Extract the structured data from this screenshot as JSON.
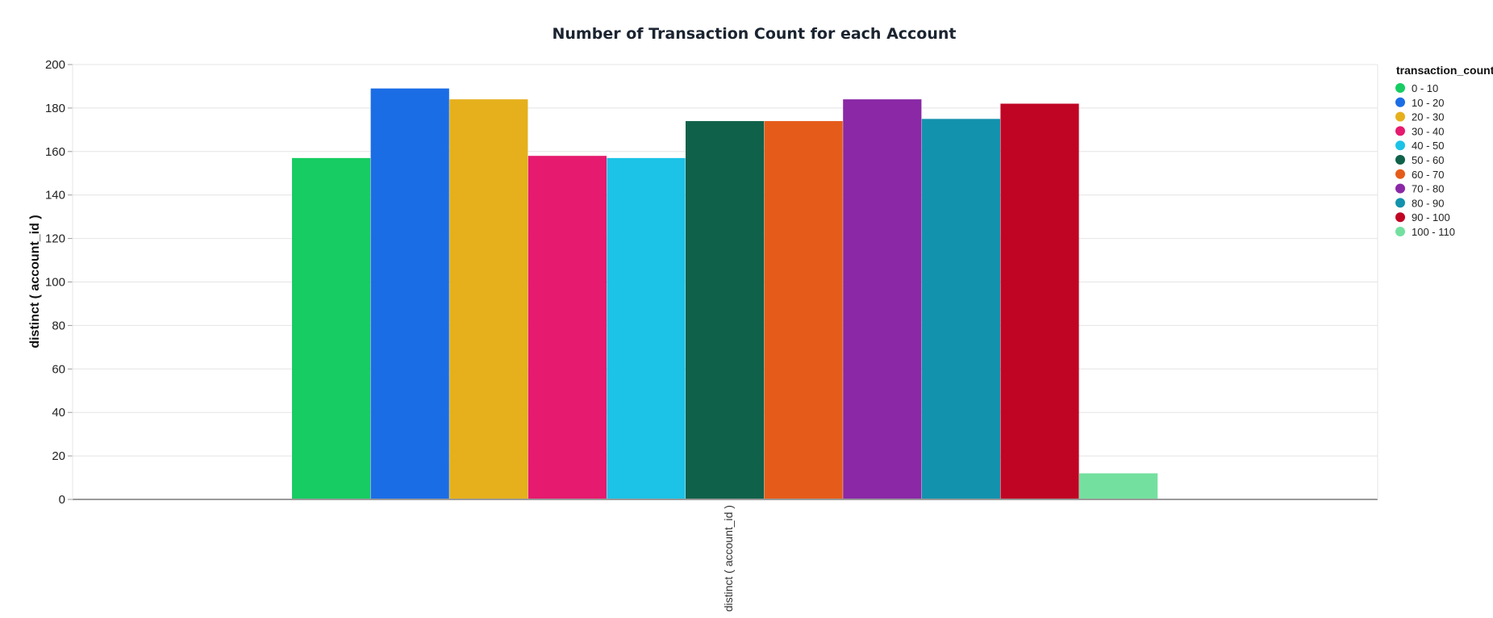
{
  "chart_data": {
    "type": "bar",
    "title": "Number of Transaction Count for each Account",
    "xlabel": "distinct ( account_id )",
    "ylabel": "distinct ( account_id )",
    "ylim": [
      0,
      200
    ],
    "yticks": [
      0,
      20,
      40,
      60,
      80,
      100,
      120,
      140,
      160,
      180,
      200
    ],
    "grid": true,
    "legend_position": "right",
    "legend_title": "transaction_count",
    "categories": [
      "distinct ( account_id )"
    ],
    "series": [
      {
        "name": "0 - 10",
        "values": [
          157
        ],
        "color": "#17cc62"
      },
      {
        "name": "10 - 20",
        "values": [
          189
        ],
        "color": "#1b6de6"
      },
      {
        "name": "20 - 30",
        "values": [
          184
        ],
        "color": "#e5b01c"
      },
      {
        "name": "30 - 40",
        "values": [
          158
        ],
        "color": "#e61a6e"
      },
      {
        "name": "40 - 50",
        "values": [
          157
        ],
        "color": "#1cc3e6"
      },
      {
        "name": "50 - 60",
        "values": [
          174
        ],
        "color": "#10614a"
      },
      {
        "name": "60 - 70",
        "values": [
          174
        ],
        "color": "#e55c1a"
      },
      {
        "name": "70 - 80",
        "values": [
          184
        ],
        "color": "#8a28a6"
      },
      {
        "name": "80 - 90",
        "values": [
          175
        ],
        "color": "#1392ad"
      },
      {
        "name": "90 - 100",
        "values": [
          182
        ],
        "color": "#c00424"
      },
      {
        "name": "100 - 110",
        "values": [
          12
        ],
        "color": "#74e0a0"
      }
    ]
  }
}
